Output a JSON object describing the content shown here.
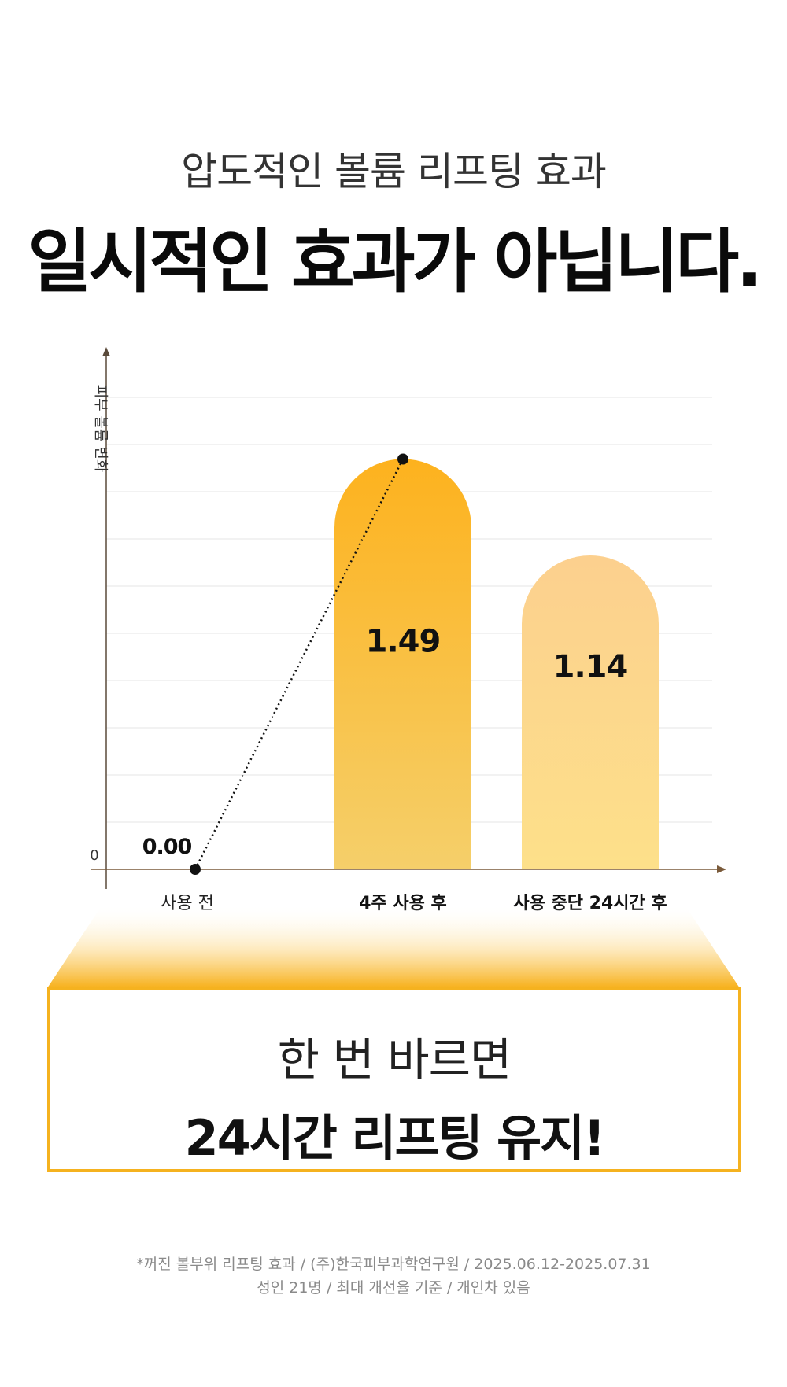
{
  "header": {
    "subtitle": "압도적인 볼륨 리프팅 효과",
    "title": "일시적인 효과가 아닙니다."
  },
  "chart_data": {
    "type": "bar",
    "ylabel": "피부 볼륨 변화",
    "y_tick": "0",
    "categories": [
      "사용 전",
      "4주 사용 후",
      "사용 중단 24시간 후"
    ],
    "values": [
      0.0,
      1.49,
      1.14
    ],
    "value_labels": [
      "0.00",
      "1.49",
      "1.14"
    ],
    "ylim": [
      0,
      1.6
    ],
    "grid": true,
    "colors": {
      "bar1_top": "#fdb21e",
      "bar1_bottom": "#f5cf6a",
      "bar2_top": "#fcd08e",
      "bar2_bottom": "#fde08a",
      "axis": "#7a5a3a",
      "dotted_line": "#111111"
    }
  },
  "callout": {
    "line1": "한 번 바르면",
    "line2": "24시간 리프팅 유지!",
    "accent": "#f5b21f"
  },
  "footnote": {
    "line1": "*꺼진 볼부위 리프팅 효과  / (주)한국피부과학연구원 / 2025.06.12-2025.07.31",
    "line2": "성인 21명 / 최대 개선율 기준 / 개인차 있음"
  }
}
